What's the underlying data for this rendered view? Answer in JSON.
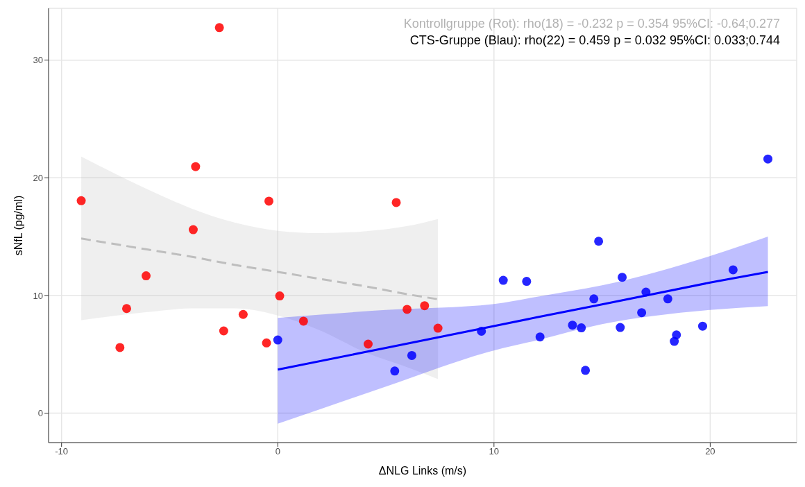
{
  "chart_data": {
    "type": "scatter",
    "xlabel": "ΔNLG Links (m/s)",
    "ylabel": "sNfL (pg/ml)",
    "annotations": [
      "Kontrollgruppe (Rot): rho(18) = -0.232 p = 0.354 95%CI: -0.64;0.277",
      "CTS-Gruppe (Blau): rho(22) = 0.459 p = 0.032 95%CI: 0.033;0.744"
    ],
    "xlim": [
      -10.6,
      24
    ],
    "ylim": [
      -2.5,
      34.4
    ],
    "xticks": [
      -10,
      0,
      10,
      20
    ],
    "yticks": [
      0,
      10,
      20,
      30
    ],
    "grid": true,
    "legend": false,
    "marker": "circle",
    "series": [
      {
        "type": "line",
        "color": "#bebebe",
        "line_style": "dashed",
        "marker": "none",
        "x": [
          -9.09,
          -6,
          -4,
          -2,
          0,
          2,
          4,
          6,
          7.41
        ],
        "values": [
          14.84,
          13.9,
          13.3,
          12.6,
          12.0,
          11.4,
          10.8,
          10.1,
          9.68
        ],
        "lower": [
          7.9,
          8.6,
          8.9,
          8.9,
          8.3,
          7.0,
          5.2,
          3.9,
          2.9
        ],
        "upper": [
          21.8,
          19.0,
          17.4,
          16.2,
          15.5,
          15.3,
          15.45,
          15.9,
          16.5
        ]
      },
      {
        "type": "line",
        "color": "#0000ff",
        "line_style": "solid",
        "marker": "none",
        "x": [
          0,
          5,
          10,
          12,
          15,
          20,
          22.67
        ],
        "values": [
          3.7,
          5.55,
          7.4,
          8.15,
          9.25,
          11.1,
          12.0
        ],
        "lower": [
          -0.9,
          2.26,
          5.33,
          6.2,
          7.56,
          8.77,
          9.1
        ],
        "upper": [
          8.1,
          8.77,
          9.28,
          9.9,
          10.86,
          13.35,
          15.0
        ]
      },
      {
        "type": "scatter",
        "color": "#ff0000",
        "x": [
          -9.09,
          -2.7,
          -3.8,
          -0.41,
          -3.91,
          -6.09,
          -6.99,
          -7.3,
          -1.6,
          -2.5,
          -0.52,
          0.09,
          1.19,
          4.18,
          5.48,
          5.98,
          6.79,
          7.41
        ],
        "values": [
          18.05,
          32.76,
          20.95,
          18.02,
          15.59,
          11.67,
          8.89,
          5.58,
          8.39,
          6.99,
          5.97,
          9.96,
          7.82,
          5.87,
          17.9,
          8.82,
          9.13,
          7.22
        ]
      },
      {
        "type": "scatter",
        "color": "#0000ff",
        "x": [
          0.0,
          5.41,
          6.2,
          9.42,
          10.43,
          11.51,
          12.13,
          13.63,
          14.04,
          14.23,
          14.62,
          14.84,
          15.84,
          15.93,
          16.83,
          17.03,
          18.04,
          18.34,
          18.44,
          19.65,
          21.06,
          22.67
        ],
        "values": [
          6.22,
          3.58,
          4.9,
          6.96,
          11.29,
          11.2,
          6.48,
          7.48,
          7.25,
          3.64,
          9.71,
          14.61,
          7.28,
          11.55,
          8.54,
          10.29,
          9.71,
          6.1,
          6.65,
          7.39,
          12.18,
          21.6
        ]
      }
    ]
  }
}
